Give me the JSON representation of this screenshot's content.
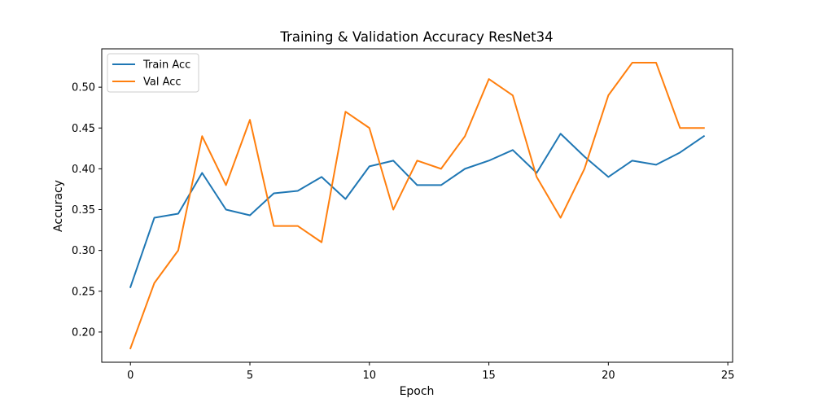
{
  "chart_data": {
    "type": "line",
    "title": "Training & Validation Accuracy ResNet34",
    "xlabel": "Epoch",
    "ylabel": "Accuracy",
    "xlim": [
      -1.2,
      25.2
    ],
    "ylim": [
      0.163,
      0.547
    ],
    "xticks": [
      0,
      5,
      10,
      15,
      20,
      25
    ],
    "yticks": [
      0.2,
      0.25,
      0.3,
      0.35,
      0.4,
      0.45,
      0.5
    ],
    "grid": false,
    "legend_position": "top-left",
    "x": [
      0,
      1,
      2,
      3,
      4,
      5,
      6,
      7,
      8,
      9,
      10,
      11,
      12,
      13,
      14,
      15,
      16,
      17,
      18,
      19,
      20,
      21,
      22,
      23,
      24
    ],
    "series": [
      {
        "name": "Train Acc",
        "color": "#1f77b4",
        "values": [
          0.255,
          0.34,
          0.345,
          0.395,
          0.35,
          0.343,
          0.37,
          0.373,
          0.39,
          0.363,
          0.403,
          0.41,
          0.38,
          0.38,
          0.4,
          0.41,
          0.423,
          0.395,
          0.443,
          0.415,
          0.39,
          0.41,
          0.405,
          0.42,
          0.44
        ]
      },
      {
        "name": "Val Acc",
        "color": "#ff7f0e",
        "values": [
          0.18,
          0.26,
          0.3,
          0.44,
          0.38,
          0.46,
          0.33,
          0.33,
          0.31,
          0.47,
          0.45,
          0.35,
          0.41,
          0.4,
          0.44,
          0.51,
          0.49,
          0.39,
          0.34,
          0.4,
          0.49,
          0.53,
          0.53,
          0.45,
          0.45
        ]
      }
    ]
  }
}
